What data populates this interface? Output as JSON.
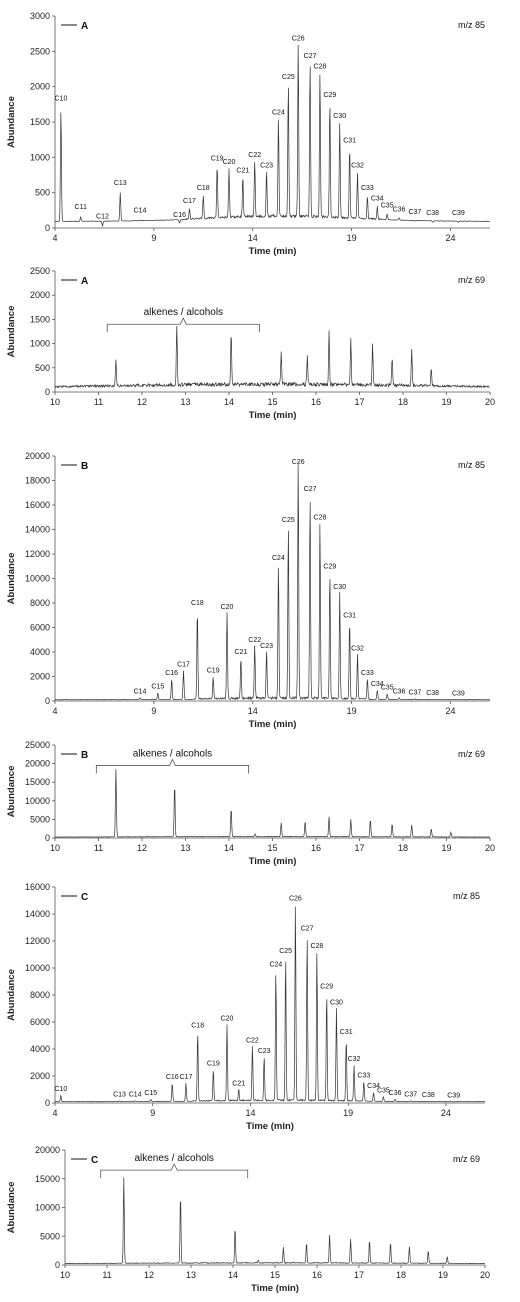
{
  "chart_data": [
    {
      "type": "line",
      "legend": "A",
      "mz": "m/z 85",
      "xlabel": "Time (min)",
      "ylabel": "Abundance",
      "xlim": [
        4,
        26
      ],
      "ylim": [
        0,
        3000
      ],
      "xticks": [
        "4",
        "9",
        "14",
        "19",
        "24"
      ],
      "xtick_values": [
        4,
        9,
        14,
        19,
        24
      ],
      "yticks": [
        "0",
        "500",
        "1000",
        "1500",
        "2000",
        "2500",
        "3000"
      ],
      "ytick_values": [
        0,
        500,
        1000,
        1500,
        2000,
        2500,
        3000
      ],
      "baseline": 150,
      "noise": 40,
      "noise_range": [
        10.5,
        20.5
      ],
      "peaks": [
        {
          "label": "C10",
          "x": 4.3,
          "y": 1750
        },
        {
          "label": "C11",
          "x": 5.3,
          "y": 210
        },
        {
          "label": "C12",
          "x": 6.4,
          "y": 80
        },
        {
          "label": "C13",
          "x": 7.3,
          "y": 550
        },
        {
          "label": "C14",
          "x": 8.3,
          "y": 160
        },
        {
          "label": "C16",
          "x": 10.3,
          "y": 100
        },
        {
          "label": "C17",
          "x": 10.8,
          "y": 300
        },
        {
          "label": "C18",
          "x": 11.5,
          "y": 480
        },
        {
          "label": "C19",
          "x": 12.2,
          "y": 900
        },
        {
          "label": "C20",
          "x": 12.8,
          "y": 850
        },
        {
          "label": "C21",
          "x": 13.5,
          "y": 730
        },
        {
          "label": "C22",
          "x": 14.1,
          "y": 950
        },
        {
          "label": "C23",
          "x": 14.7,
          "y": 800
        },
        {
          "label": "C24",
          "x": 15.3,
          "y": 1550
        },
        {
          "label": "C25",
          "x": 15.8,
          "y": 2050
        },
        {
          "label": "C26",
          "x": 16.3,
          "y": 2600
        },
        {
          "label": "C27",
          "x": 16.9,
          "y": 2350
        },
        {
          "label": "C28",
          "x": 17.4,
          "y": 2200
        },
        {
          "label": "C29",
          "x": 17.9,
          "y": 1800
        },
        {
          "label": "C30",
          "x": 18.4,
          "y": 1500
        },
        {
          "label": "C31",
          "x": 18.9,
          "y": 1150
        },
        {
          "label": "C32",
          "x": 19.3,
          "y": 800
        },
        {
          "label": "C33",
          "x": 19.8,
          "y": 480
        },
        {
          "label": "C34",
          "x": 20.3,
          "y": 330
        },
        {
          "label": "C35",
          "x": 20.8,
          "y": 230
        },
        {
          "label": "C36",
          "x": 21.4,
          "y": 180
        },
        {
          "label": "C37",
          "x": 22.2,
          "y": 140
        },
        {
          "label": "C38",
          "x": 23.1,
          "y": 130
        },
        {
          "label": "C39",
          "x": 24.4,
          "y": 130
        }
      ],
      "extra_peaks": []
    },
    {
      "type": "line",
      "legend": "A",
      "mz": "m/z 69",
      "xlabel": "Time (min)",
      "ylabel": "Abundance",
      "xlim": [
        10,
        20
      ],
      "ylim": [
        0,
        2500
      ],
      "xticks": [
        "10",
        "11",
        "12",
        "13",
        "14",
        "15",
        "16",
        "17",
        "18",
        "19",
        "20"
      ],
      "xtick_values": [
        10,
        11,
        12,
        13,
        14,
        15,
        16,
        17,
        18,
        19,
        20
      ],
      "yticks": [
        "0",
        "500",
        "1000",
        "1500",
        "2000",
        "2500"
      ],
      "ytick_values": [
        0,
        500,
        1000,
        1500,
        2000,
        2500
      ],
      "baseline": 120,
      "noise": 80,
      "noise_range": [
        10,
        20
      ],
      "bracket": {
        "text": "alkenes / alcohols",
        "x1": 11.2,
        "x2": 14.7,
        "y": 1400
      },
      "peaks": [],
      "extra_peaks": [
        [
          11.4,
          650
        ],
        [
          12.8,
          1350
        ],
        [
          14.05,
          1200
        ],
        [
          15.2,
          800
        ],
        [
          15.8,
          700
        ],
        [
          16.3,
          1200
        ],
        [
          16.8,
          1050
        ],
        [
          17.3,
          950
        ],
        [
          17.75,
          700
        ],
        [
          18.2,
          850
        ],
        [
          18.65,
          500
        ]
      ]
    },
    {
      "type": "line",
      "legend": "B",
      "mz": "m/z 85",
      "xlabel": "Time (min)",
      "ylabel": "Abundance",
      "xlim": [
        4,
        26
      ],
      "ylim": [
        0,
        20000
      ],
      "xticks": [
        "4",
        "9",
        "14",
        "19",
        "24"
      ],
      "xtick_values": [
        4,
        9,
        14,
        19,
        24
      ],
      "yticks": [
        "0",
        "2000",
        "4000",
        "6000",
        "8000",
        "10000",
        "12000",
        "14000",
        "16000",
        "18000",
        "20000"
      ],
      "ytick_values": [
        0,
        2000,
        4000,
        6000,
        8000,
        10000,
        12000,
        14000,
        16000,
        18000,
        20000
      ],
      "baseline": 150,
      "noise": 200,
      "noise_range": [
        11,
        20
      ],
      "peaks": [
        {
          "label": "C14",
          "x": 8.3,
          "y": 300
        },
        {
          "label": "C15",
          "x": 9.2,
          "y": 700
        },
        {
          "label": "C16",
          "x": 9.9,
          "y": 1800
        },
        {
          "label": "C17",
          "x": 10.5,
          "y": 2500
        },
        {
          "label": "C18",
          "x": 11.2,
          "y": 7500
        },
        {
          "label": "C19",
          "x": 12.0,
          "y": 2000
        },
        {
          "label": "C20",
          "x": 12.7,
          "y": 7200
        },
        {
          "label": "C21",
          "x": 13.4,
          "y": 3500
        },
        {
          "label": "C22",
          "x": 14.1,
          "y": 4500
        },
        {
          "label": "C23",
          "x": 14.7,
          "y": 4000
        },
        {
          "label": "C24",
          "x": 15.3,
          "y": 11200
        },
        {
          "label": "C25",
          "x": 15.8,
          "y": 14300
        },
        {
          "label": "C26",
          "x": 16.3,
          "y": 19500
        },
        {
          "label": "C27",
          "x": 16.9,
          "y": 16800
        },
        {
          "label": "C28",
          "x": 17.4,
          "y": 14500
        },
        {
          "label": "C29",
          "x": 17.9,
          "y": 10500
        },
        {
          "label": "C30",
          "x": 18.4,
          "y": 8800
        },
        {
          "label": "C31",
          "x": 18.9,
          "y": 6500
        },
        {
          "label": "C32",
          "x": 19.3,
          "y": 3800
        },
        {
          "label": "C33",
          "x": 19.8,
          "y": 1800
        },
        {
          "label": "C34",
          "x": 20.3,
          "y": 900
        },
        {
          "label": "C35",
          "x": 20.8,
          "y": 600
        },
        {
          "label": "C36",
          "x": 21.4,
          "y": 300
        },
        {
          "label": "C37",
          "x": 22.2,
          "y": 200
        },
        {
          "label": "C38",
          "x": 23.1,
          "y": 150
        },
        {
          "label": "C39",
          "x": 24.4,
          "y": 120
        }
      ],
      "extra_peaks": []
    },
    {
      "type": "line",
      "legend": "B",
      "mz": "m/z 69",
      "xlabel": "Time (min)",
      "ylabel": "Abundance",
      "xlim": [
        10,
        20
      ],
      "ylim": [
        0,
        25000
      ],
      "xticks": [
        "10",
        "11",
        "12",
        "13",
        "14",
        "15",
        "16",
        "17",
        "18",
        "19",
        "20"
      ],
      "xtick_values": [
        10,
        11,
        12,
        13,
        14,
        15,
        16,
        17,
        18,
        19,
        20
      ],
      "yticks": [
        "0",
        "5000",
        "10000",
        "15000",
        "20000",
        "25000"
      ],
      "ytick_values": [
        0,
        5000,
        10000,
        15000,
        20000,
        25000
      ],
      "baseline": 300,
      "noise": 150,
      "noise_range": [
        10,
        20
      ],
      "bracket": {
        "text": "alkenes / alcohols",
        "x1": 10.95,
        "x2": 14.45,
        "y": 19500
      },
      "peaks": [],
      "extra_peaks": [
        [
          11.4,
          18500
        ],
        [
          12.75,
          14500
        ],
        [
          14.05,
          8000
        ],
        [
          14.6,
          1000
        ],
        [
          15.2,
          4000
        ],
        [
          15.75,
          4500
        ],
        [
          16.3,
          5700
        ],
        [
          16.8,
          5000
        ],
        [
          17.25,
          5000
        ],
        [
          17.75,
          3800
        ],
        [
          18.2,
          3500
        ],
        [
          18.65,
          2500
        ],
        [
          19.1,
          1500
        ]
      ]
    },
    {
      "type": "line",
      "legend": "C",
      "mz": "m/z 85",
      "xlabel": "Time (min)",
      "ylabel": "Abundance",
      "xlim": [
        4,
        26
      ],
      "ylim": [
        0,
        16000
      ],
      "xticks": [
        "4",
        "9",
        "14",
        "19",
        "24"
      ],
      "xtick_values": [
        4,
        9,
        14,
        19,
        24
      ],
      "yticks": [
        "0",
        "2000",
        "4000",
        "6000",
        "8000",
        "10000",
        "12000",
        "14000",
        "16000"
      ],
      "ytick_values": [
        0,
        2000,
        4000,
        6000,
        8000,
        10000,
        12000,
        14000,
        16000
      ],
      "baseline": 150,
      "noise": 120,
      "noise_range": [
        11,
        20
      ],
      "peaks": [
        {
          "label": "C10",
          "x": 4.3,
          "y": 600
        },
        {
          "label": "C13",
          "x": 7.3,
          "y": 200
        },
        {
          "label": "C14",
          "x": 8.1,
          "y": 200
        },
        {
          "label": "C15",
          "x": 8.9,
          "y": 300
        },
        {
          "label": "C16",
          "x": 10.0,
          "y": 1500
        },
        {
          "label": "C17",
          "x": 10.7,
          "y": 1500
        },
        {
          "label": "C18",
          "x": 11.3,
          "y": 5300
        },
        {
          "label": "C19",
          "x": 12.1,
          "y": 2500
        },
        {
          "label": "C20",
          "x": 12.8,
          "y": 5800
        },
        {
          "label": "C21",
          "x": 13.4,
          "y": 1000
        },
        {
          "label": "C22",
          "x": 14.1,
          "y": 4200
        },
        {
          "label": "C23",
          "x": 14.7,
          "y": 3400
        },
        {
          "label": "C24",
          "x": 15.3,
          "y": 9800
        },
        {
          "label": "C25",
          "x": 15.8,
          "y": 10800
        },
        {
          "label": "C26",
          "x": 16.3,
          "y": 14700
        },
        {
          "label": "C27",
          "x": 16.9,
          "y": 12500
        },
        {
          "label": "C28",
          "x": 17.4,
          "y": 11200
        },
        {
          "label": "C29",
          "x": 17.9,
          "y": 8200
        },
        {
          "label": "C30",
          "x": 18.4,
          "y": 7000
        },
        {
          "label": "C31",
          "x": 18.9,
          "y": 4800
        },
        {
          "label": "C32",
          "x": 19.3,
          "y": 2800
        },
        {
          "label": "C33",
          "x": 19.8,
          "y": 1600
        },
        {
          "label": "C34",
          "x": 20.3,
          "y": 800
        },
        {
          "label": "C35",
          "x": 20.8,
          "y": 500
        },
        {
          "label": "C36",
          "x": 21.4,
          "y": 300
        },
        {
          "label": "C37",
          "x": 22.2,
          "y": 200
        },
        {
          "label": "C38",
          "x": 23.1,
          "y": 150
        },
        {
          "label": "C39",
          "x": 24.4,
          "y": 120
        }
      ],
      "extra_peaks": []
    },
    {
      "type": "line",
      "legend": "C",
      "mz": "m/z 69",
      "xlabel": "Time (min)",
      "ylabel": "Abundance",
      "xlim": [
        10,
        20
      ],
      "ylim": [
        0,
        20000
      ],
      "xticks": [
        "10",
        "11",
        "12",
        "13",
        "14",
        "15",
        "16",
        "17",
        "18",
        "19",
        "20"
      ],
      "xtick_values": [
        10,
        11,
        12,
        13,
        14,
        15,
        16,
        17,
        18,
        19,
        20
      ],
      "yticks": [
        "0",
        "5000",
        "10000",
        "15000",
        "20000"
      ],
      "ytick_values": [
        0,
        5000,
        10000,
        15000,
        20000
      ],
      "baseline": 300,
      "noise": 150,
      "noise_range": [
        10,
        20
      ],
      "bracket": {
        "text": "alkenes / alcohols",
        "x1": 10.85,
        "x2": 14.35,
        "y": 16500
      },
      "peaks": [],
      "extra_peaks": [
        [
          11.4,
          15200
        ],
        [
          12.75,
          12300
        ],
        [
          14.05,
          6500
        ],
        [
          14.6,
          800
        ],
        [
          15.2,
          3000
        ],
        [
          15.75,
          3800
        ],
        [
          16.3,
          5200
        ],
        [
          16.8,
          4500
        ],
        [
          17.25,
          4300
        ],
        [
          17.75,
          3900
        ],
        [
          18.2,
          3200
        ],
        [
          18.65,
          2500
        ],
        [
          19.1,
          1500
        ]
      ]
    }
  ]
}
